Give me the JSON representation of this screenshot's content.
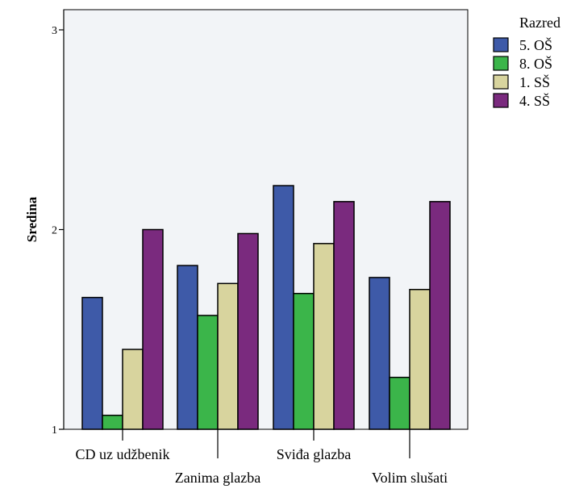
{
  "chart_data": {
    "type": "bar",
    "ylabel": "Sredina",
    "ylim": [
      1,
      3.1
    ],
    "yticks": [
      "1",
      "2",
      "3"
    ],
    "grid": false,
    "legend_title": "Razred",
    "legend_placement": "right",
    "categories": [
      "CD uz udžbenik",
      "Zanima glazba",
      "Sviđa glazba",
      "Volim slušati"
    ],
    "series": [
      {
        "name": "5. OŠ",
        "color": "#3e5aa8",
        "values": [
          1.66,
          1.82,
          2.22,
          1.76
        ]
      },
      {
        "name": "8. OŠ",
        "color": "#3bb54a",
        "values": [
          1.07,
          1.57,
          1.68,
          1.26
        ]
      },
      {
        "name": "1. SŠ",
        "color": "#d8d49e",
        "values": [
          1.4,
          1.73,
          1.93,
          1.7
        ]
      },
      {
        "name": "4. SŠ",
        "color": "#7a2a7e",
        "values": [
          2.0,
          1.98,
          2.14,
          2.14
        ]
      }
    ]
  }
}
